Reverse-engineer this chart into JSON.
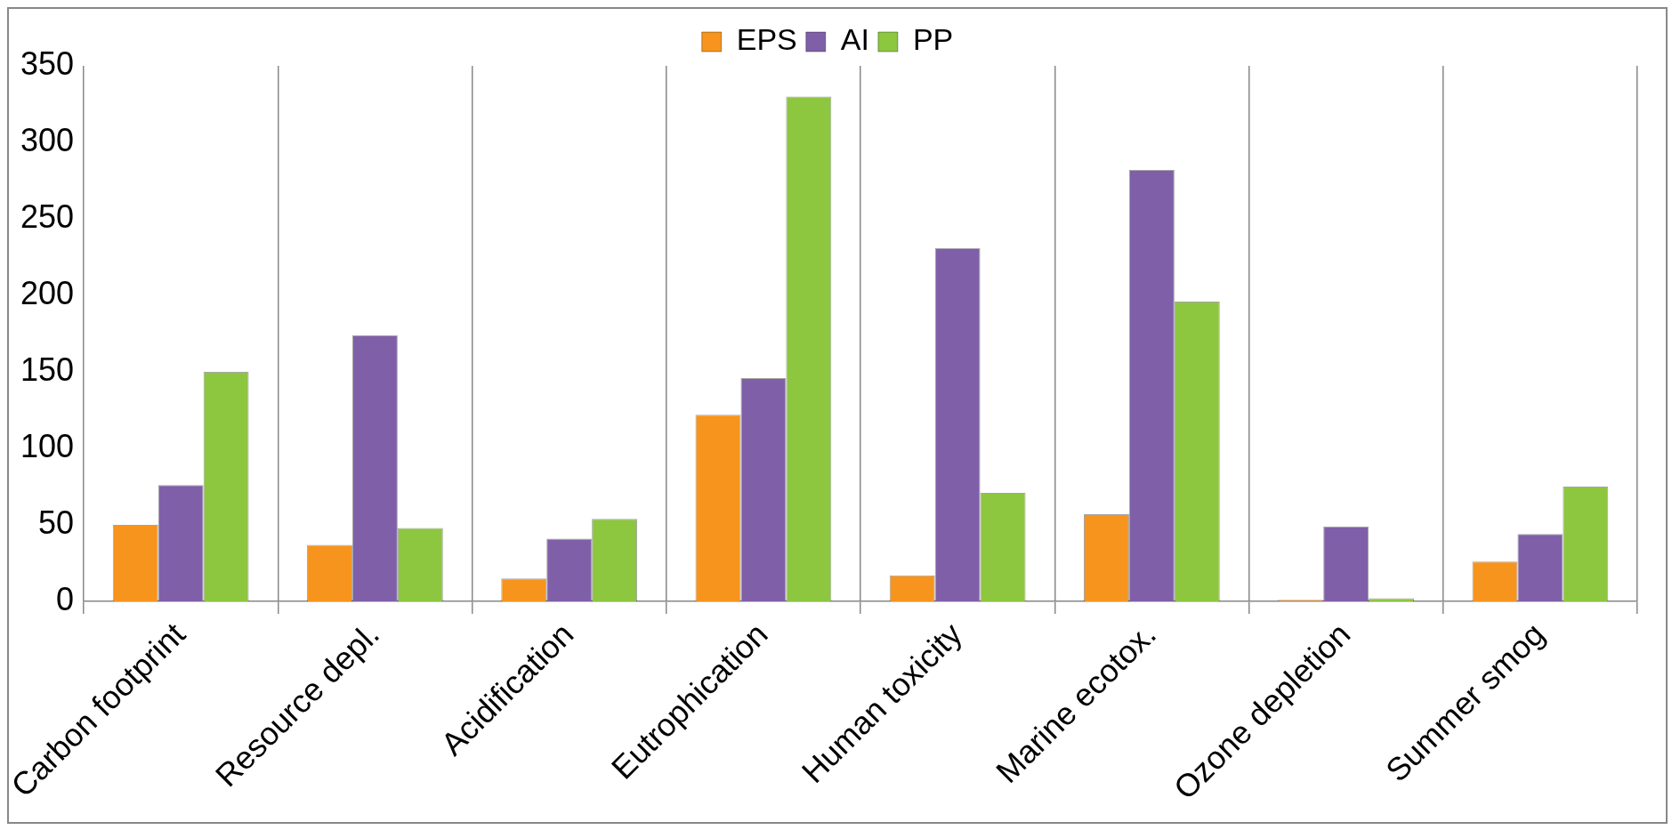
{
  "chart_data": {
    "type": "bar",
    "categories": [
      "Carbon footprint",
      "Resource depl.",
      "Acidification",
      "Eutrophication",
      "Human toxicity",
      "Marine ecotox.",
      "Ozone depletion",
      "Summer smog"
    ],
    "series": [
      {
        "name": "EPS",
        "color": "#f7941d",
        "values": [
          50,
          37,
          15,
          122,
          17,
          57,
          1,
          26
        ]
      },
      {
        "name": "AI",
        "color": "#7f5fa8",
        "values": [
          76,
          174,
          41,
          146,
          231,
          282,
          49,
          44
        ]
      },
      {
        "name": "PP",
        "color": "#8dc63f",
        "values": [
          150,
          48,
          54,
          330,
          71,
          196,
          2,
          75
        ]
      }
    ],
    "ylim": [
      0,
      350
    ],
    "yticks": [
      0,
      50,
      100,
      150,
      200,
      250,
      300,
      350
    ],
    "grid": "x",
    "legend": "top"
  }
}
